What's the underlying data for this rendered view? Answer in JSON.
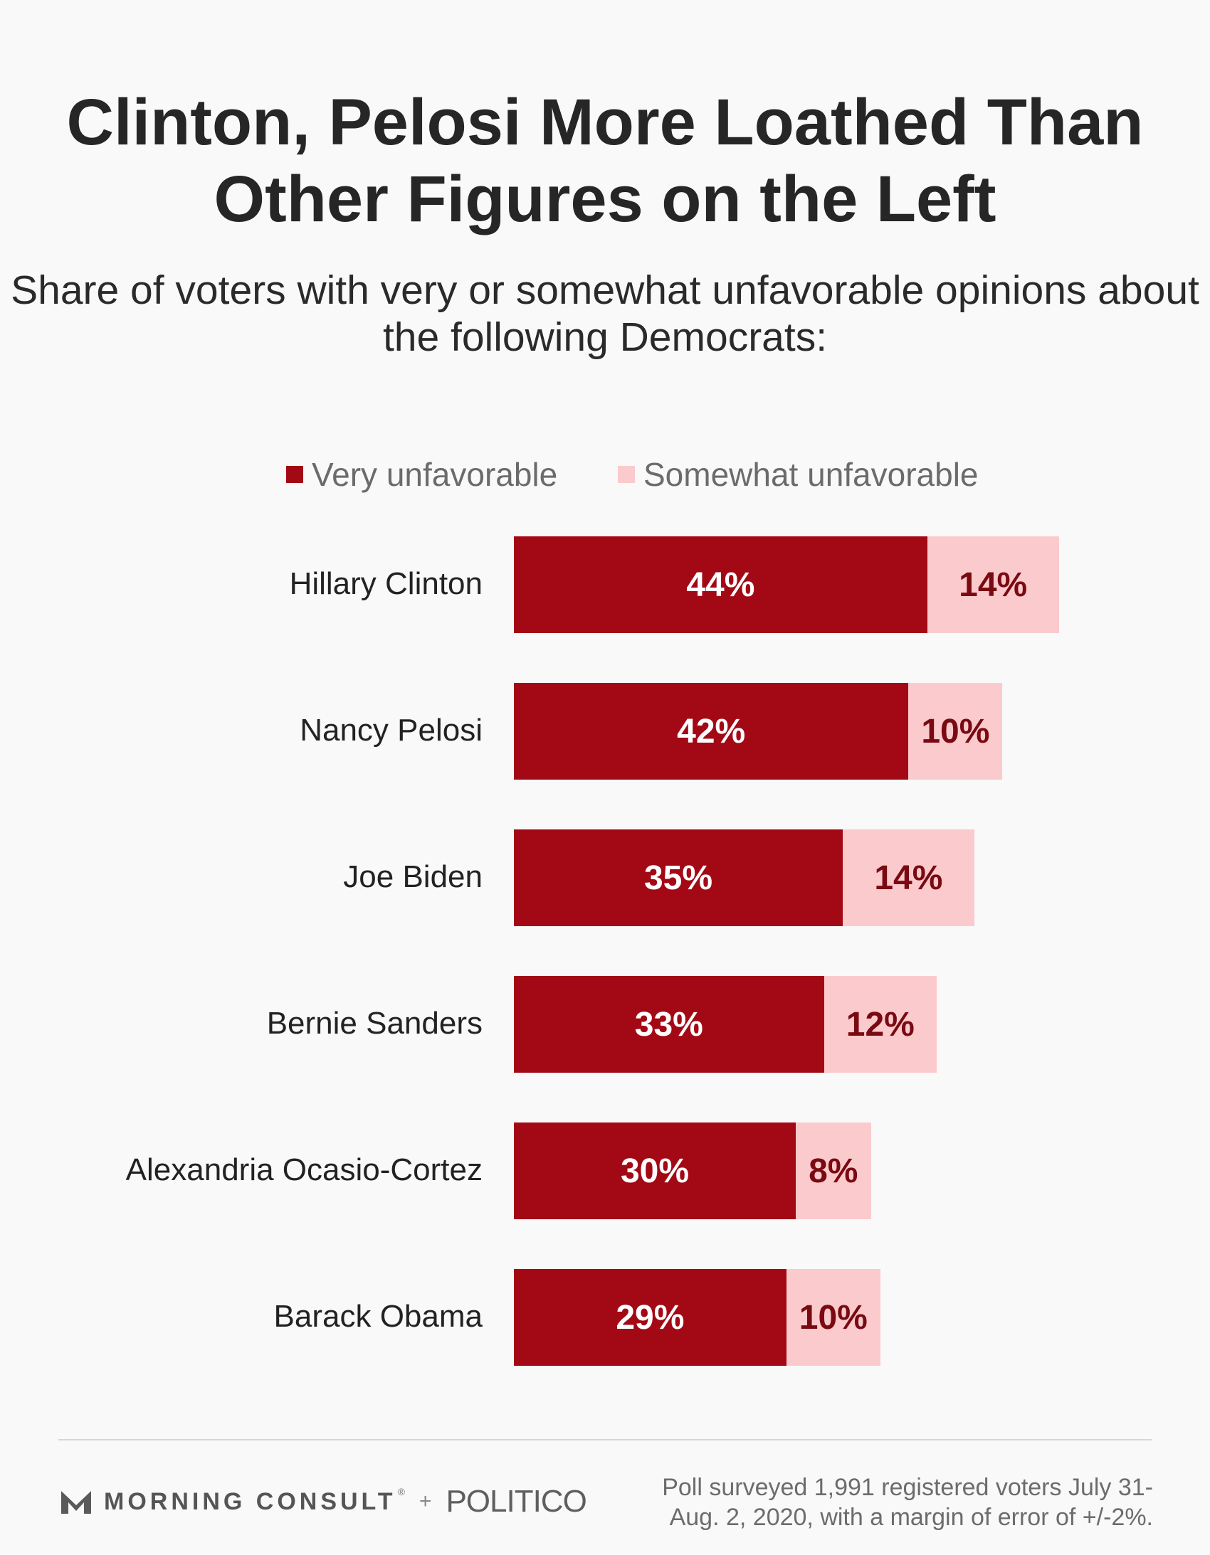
{
  "chart_data": {
    "type": "bar",
    "orientation": "horizontal",
    "stacked": true,
    "title": "Clinton, Pelosi More Loathed Than Other Figures on the Left",
    "subtitle": "Share of voters with very or somewhat unfavorable opinions about the following Democrats:",
    "categories": [
      "Hillary Clinton",
      "Nancy Pelosi",
      "Joe Biden",
      "Bernie Sanders",
      "Alexandria Ocasio-Cortez",
      "Barack Obama"
    ],
    "series": [
      {
        "name": "Very unfavorable",
        "values": [
          44,
          42,
          35,
          33,
          30,
          29
        ],
        "labels": [
          "44%",
          "42%",
          "35%",
          "33%",
          "30%",
          "29%"
        ],
        "color": "#a30915",
        "label_color": "#ffffff"
      },
      {
        "name": "Somewhat unfavorable",
        "values": [
          14,
          10,
          14,
          12,
          8,
          10
        ],
        "labels": [
          "14%",
          "10%",
          "14%",
          "12%",
          "8%",
          "10%"
        ],
        "color": "#fbcacd",
        "label_color": "#7a0a12"
      }
    ],
    "xlim": [
      0,
      60
    ],
    "grid": false,
    "legend_position": "top"
  },
  "footer": {
    "brand": "MORNING CONSULT",
    "brand_mark": "®",
    "separator": "+",
    "partner": "POLITICO",
    "note": "Poll surveyed 1,991 registered voters July 31-Aug. 2, 2020, with a margin of error of +/-2%."
  },
  "colors": {
    "background": "#f9f9f9",
    "very": "#a30915",
    "somewhat": "#fbcacd"
  },
  "icons": {
    "brand_logo": "morning-consult-m-icon"
  }
}
